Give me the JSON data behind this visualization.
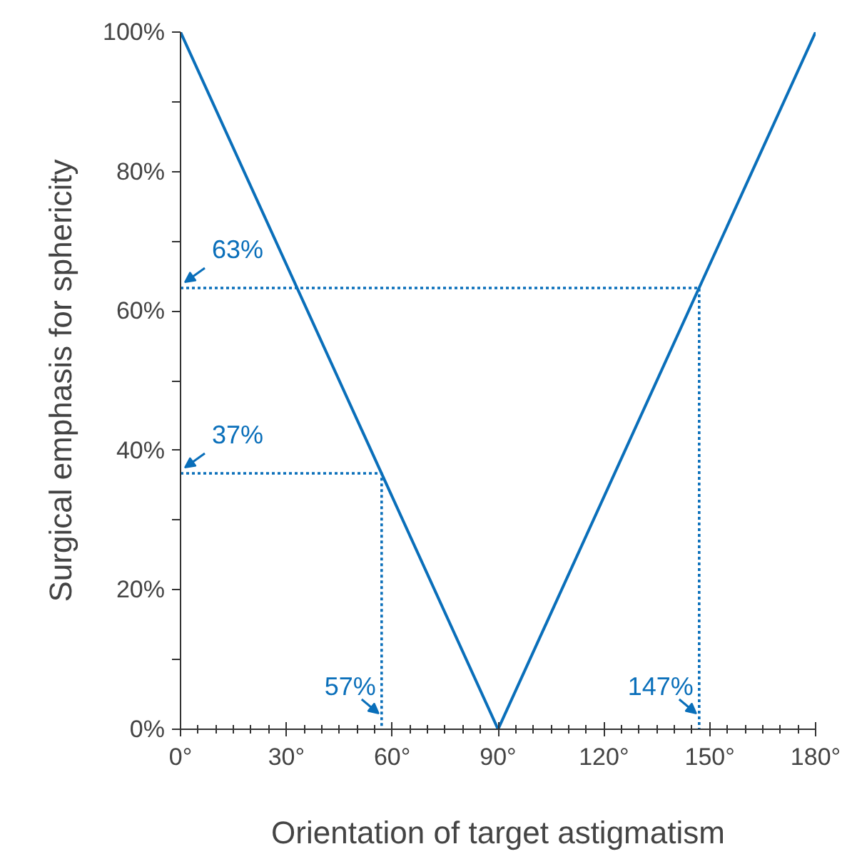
{
  "chart_data": {
    "type": "line",
    "xlabel": "Orientation of target astigmatism",
    "ylabel": "Surgical emphasis for sphericity",
    "xlim": [
      0,
      180
    ],
    "ylim": [
      0,
      100
    ],
    "xticks": [
      {
        "value": 0,
        "label": "0°"
      },
      {
        "value": 5,
        "label": null
      },
      {
        "value": 10,
        "label": null
      },
      {
        "value": 15,
        "label": null
      },
      {
        "value": 20,
        "label": null
      },
      {
        "value": 25,
        "label": null
      },
      {
        "value": 30,
        "label": "30°"
      },
      {
        "value": 35,
        "label": null
      },
      {
        "value": 40,
        "label": null
      },
      {
        "value": 45,
        "label": null
      },
      {
        "value": 50,
        "label": null
      },
      {
        "value": 55,
        "label": null
      },
      {
        "value": 60,
        "label": "60°"
      },
      {
        "value": 65,
        "label": null
      },
      {
        "value": 70,
        "label": null
      },
      {
        "value": 75,
        "label": null
      },
      {
        "value": 80,
        "label": null
      },
      {
        "value": 85,
        "label": null
      },
      {
        "value": 90,
        "label": "90°"
      },
      {
        "value": 95,
        "label": null
      },
      {
        "value": 100,
        "label": null
      },
      {
        "value": 105,
        "label": null
      },
      {
        "value": 110,
        "label": null
      },
      {
        "value": 115,
        "label": null
      },
      {
        "value": 120,
        "label": "120°"
      },
      {
        "value": 125,
        "label": null
      },
      {
        "value": 130,
        "label": null
      },
      {
        "value": 135,
        "label": null
      },
      {
        "value": 140,
        "label": null
      },
      {
        "value": 145,
        "label": null
      },
      {
        "value": 150,
        "label": "150°"
      },
      {
        "value": 155,
        "label": null
      },
      {
        "value": 160,
        "label": null
      },
      {
        "value": 165,
        "label": null
      },
      {
        "value": 170,
        "label": null
      },
      {
        "value": 175,
        "label": null
      },
      {
        "value": 180,
        "label": "180°"
      }
    ],
    "yticks": [
      {
        "value": 0,
        "label": "0%"
      },
      {
        "value": 10,
        "label": null
      },
      {
        "value": 20,
        "label": "20%"
      },
      {
        "value": 30,
        "label": null
      },
      {
        "value": 40,
        "label": "40%"
      },
      {
        "value": 50,
        "label": null
      },
      {
        "value": 60,
        "label": "60%"
      },
      {
        "value": 70,
        "label": null
      },
      {
        "value": 80,
        "label": "80%"
      },
      {
        "value": 90,
        "label": null
      },
      {
        "value": 100,
        "label": "100%"
      }
    ],
    "grid": false,
    "series": [
      {
        "color": "#0a6fba",
        "x": [
          0,
          90,
          180
        ],
        "values": [
          100,
          0,
          100
        ]
      },
      {
        "color": "#0a6fba",
        "line_style": "dotted",
        "x": [
          0,
          147,
          147
        ],
        "values": [
          63.3,
          63.3,
          0
        ]
      },
      {
        "color": "#0a6fba",
        "line_style": "dotted",
        "x": [
          0,
          57,
          57
        ],
        "values": [
          36.7,
          36.7,
          0
        ]
      }
    ],
    "annotations": [
      {
        "text": "63%",
        "x": 0,
        "y": 63.3
      },
      {
        "text": "37%",
        "x": 0,
        "y": 36.7
      },
      {
        "text": "57%",
        "x": 57,
        "y": 0
      },
      {
        "text": "147%",
        "x": 147,
        "y": 0
      }
    ]
  }
}
